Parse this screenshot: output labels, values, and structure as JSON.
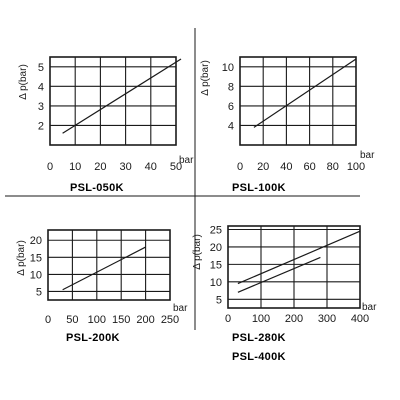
{
  "chart_data": [
    {
      "type": "line",
      "title": "PSL-050K",
      "ylabel": "Δ p(bar)",
      "xlabel": "bar",
      "xlim": [
        0,
        50
      ],
      "ylim": [
        1,
        5.5
      ],
      "xticks": [
        0,
        10,
        20,
        30,
        40,
        50
      ],
      "yticks": [
        2,
        3,
        4,
        5
      ],
      "grid": true,
      "series": [
        {
          "x": [
            5,
            52
          ],
          "y": [
            1.6,
            5.4
          ]
        }
      ]
    },
    {
      "type": "line",
      "title": "PSL-100K",
      "ylabel": "Δ p(bar)",
      "xlabel": "bar",
      "xlim": [
        0,
        100
      ],
      "ylim": [
        2,
        11
      ],
      "xticks": [
        0,
        20,
        40,
        60,
        80,
        100
      ],
      "yticks": [
        4,
        6,
        8,
        10
      ],
      "grid": true,
      "series": [
        {
          "x": [
            12,
            100
          ],
          "y": [
            3.8,
            10.8
          ]
        }
      ]
    },
    {
      "type": "line",
      "title": "PSL-200K",
      "ylabel": "Δ p(bar)",
      "xlabel": "bar",
      "xlim": [
        0,
        250
      ],
      "ylim": [
        2.5,
        23
      ],
      "xticks": [
        0,
        50,
        100,
        150,
        200,
        250
      ],
      "yticks": [
        5,
        10,
        15,
        20
      ],
      "grid": true,
      "series": [
        {
          "x": [
            30,
            200
          ],
          "y": [
            5.5,
            18
          ]
        }
      ]
    },
    {
      "type": "line",
      "title": "PSL-280K",
      "title2": "PSL-400K",
      "ylabel": "Δ p(bar)",
      "xlabel": "bar",
      "xlim": [
        0,
        400
      ],
      "ylim": [
        2.5,
        26
      ],
      "xticks": [
        0,
        100,
        200,
        300,
        400
      ],
      "yticks": [
        5,
        10,
        15,
        20,
        25
      ],
      "grid": true,
      "series": [
        {
          "x": [
            30,
            400
          ],
          "y": [
            9.5,
            24.5
          ]
        },
        {
          "x": [
            30,
            280
          ],
          "y": [
            7,
            17
          ]
        }
      ]
    }
  ]
}
